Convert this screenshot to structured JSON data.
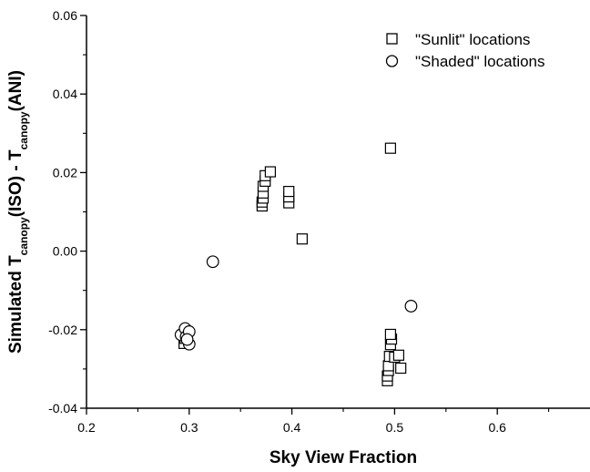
{
  "chart_data": {
    "type": "scatter",
    "title": "",
    "xlabel": "Sky View Fraction",
    "ylabel": {
      "parts": [
        {
          "text": "Simulated T",
          "sub": false
        },
        {
          "text": "canopy",
          "sub": true
        },
        {
          "text": "(ISO) - T",
          "sub": false
        },
        {
          "text": "canopy",
          "sub": true
        },
        {
          "text": "(ANI)",
          "sub": false
        }
      ]
    },
    "xlim": [
      0.2,
      0.7
    ],
    "ylim": [
      -0.04,
      0.06
    ],
    "xticks": [
      "0.2",
      "0.3",
      "0.4",
      "0.5",
      "0.6",
      "0.7"
    ],
    "yticks": [
      "-0.04",
      "-0.02",
      "0.00",
      "0.02",
      "0.04",
      "0.06"
    ],
    "grid": false,
    "legend_position": "top-right",
    "series": [
      {
        "name": "\"Sunlit\" locations",
        "marker": "square",
        "points": [
          {
            "x": 0.371,
            "y": 0.0115
          },
          {
            "x": 0.371,
            "y": 0.0125
          },
          {
            "x": 0.372,
            "y": 0.0135
          },
          {
            "x": 0.372,
            "y": 0.0148
          },
          {
            "x": 0.372,
            "y": 0.0165
          },
          {
            "x": 0.374,
            "y": 0.0178
          },
          {
            "x": 0.374,
            "y": 0.0192
          },
          {
            "x": 0.379,
            "y": 0.0202
          },
          {
            "x": 0.397,
            "y": 0.0123
          },
          {
            "x": 0.397,
            "y": 0.0138
          },
          {
            "x": 0.397,
            "y": 0.0152
          },
          {
            "x": 0.41,
            "y": 0.0031
          },
          {
            "x": 0.496,
            "y": 0.0262
          },
          {
            "x": 0.295,
            "y": -0.0235
          },
          {
            "x": 0.296,
            "y": -0.0222
          },
          {
            "x": 0.298,
            "y": -0.021
          },
          {
            "x": 0.493,
            "y": -0.033
          },
          {
            "x": 0.493,
            "y": -0.0318
          },
          {
            "x": 0.494,
            "y": -0.0304
          },
          {
            "x": 0.494,
            "y": -0.0292
          },
          {
            "x": 0.495,
            "y": -0.0268
          },
          {
            "x": 0.496,
            "y": -0.0238
          },
          {
            "x": 0.497,
            "y": -0.0224
          },
          {
            "x": 0.496,
            "y": -0.0212
          },
          {
            "x": 0.5,
            "y": -0.027
          },
          {
            "x": 0.504,
            "y": -0.0265
          },
          {
            "x": 0.506,
            "y": -0.0298
          }
        ]
      },
      {
        "name": "\"Shaded\" locations",
        "marker": "circle",
        "points": [
          {
            "x": 0.323,
            "y": -0.0027
          },
          {
            "x": 0.516,
            "y": -0.014
          },
          {
            "x": 0.292,
            "y": -0.0213
          },
          {
            "x": 0.296,
            "y": -0.0197
          },
          {
            "x": 0.297,
            "y": -0.0218
          },
          {
            "x": 0.3,
            "y": -0.0205
          },
          {
            "x": 0.3,
            "y": -0.0237
          },
          {
            "x": 0.298,
            "y": -0.0225
          }
        ]
      }
    ]
  }
}
